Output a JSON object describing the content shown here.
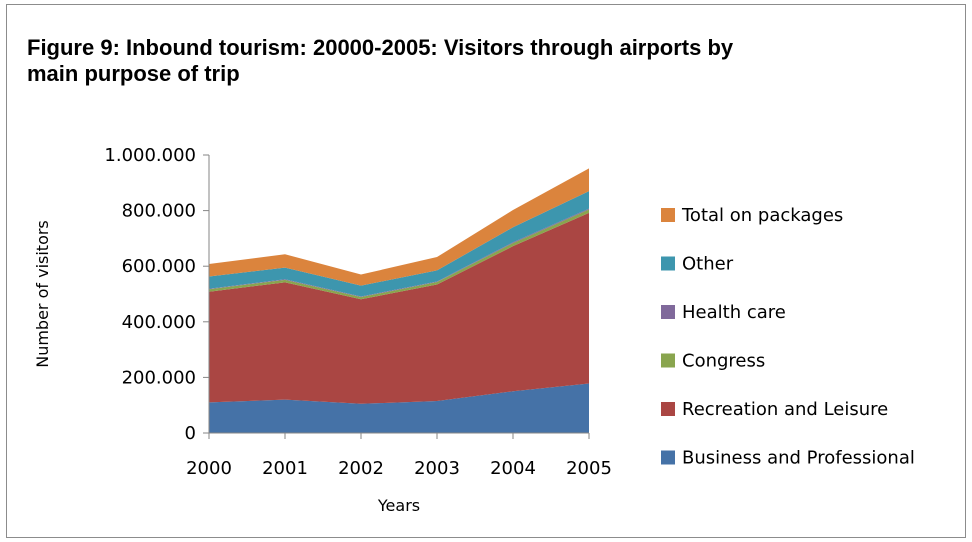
{
  "chart_data": {
    "type": "area",
    "stacked": true,
    "title": "Figure 9: Inbound tourism: 20000-2005: Visitors through airports by main purpose of trip",
    "xlabel": "Years",
    "ylabel": "Number of visitors",
    "categories": [
      "2000",
      "2001",
      "2002",
      "2003",
      "2004",
      "2005"
    ],
    "ylim": [
      0,
      1000000
    ],
    "yticks": [
      0,
      200000,
      400000,
      600000,
      800000,
      1000000
    ],
    "ytick_labels": [
      "0",
      "200.000",
      "400.000",
      "600.000",
      "800.000",
      "1.000.000"
    ],
    "grid": false,
    "legend_position": "right",
    "series": [
      {
        "name": "Business and Professional",
        "color": "#4572A7",
        "values": [
          110000,
          120000,
          105000,
          115000,
          150000,
          178000
        ]
      },
      {
        "name": "Recreation and Leisure",
        "color": "#AA4643",
        "values": [
          398000,
          422000,
          376000,
          419000,
          522000,
          614000
        ]
      },
      {
        "name": "Congress",
        "color": "#89A54E",
        "values": [
          9000,
          9000,
          8000,
          9000,
          11000,
          12000
        ]
      },
      {
        "name": "Health care",
        "color": "#80699B",
        "values": [
          2000,
          2000,
          2000,
          2000,
          3000,
          3000
        ]
      },
      {
        "name": "Other",
        "color": "#3D96AE",
        "values": [
          44000,
          42000,
          39000,
          40000,
          54000,
          63000
        ]
      },
      {
        "name": "Total on packages",
        "color": "#DB843D",
        "values": [
          45000,
          48000,
          40000,
          48000,
          62000,
          82000
        ]
      }
    ]
  }
}
